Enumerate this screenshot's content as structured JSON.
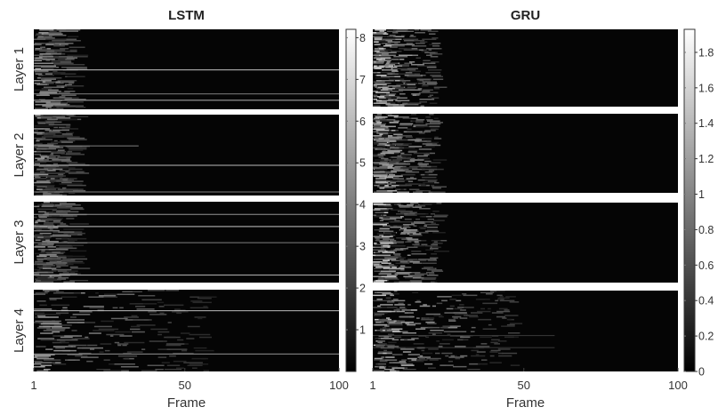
{
  "chart_data": [
    {
      "type": "heatmap",
      "title": "LSTM",
      "xlabel": "Frame",
      "x_ticks": [
        "1",
        "50",
        "100"
      ],
      "x_range": [
        1,
        100
      ],
      "layers": [
        "Layer 1",
        "Layer 2",
        "Layer 3",
        "Layer 4"
      ],
      "colorbar": {
        "colormap": "gray",
        "range": [
          0,
          8.2
        ],
        "ticks": [
          "1",
          "2",
          "3",
          "4",
          "5",
          "6",
          "7",
          "8"
        ],
        "tick_values": [
          1,
          2,
          3,
          4,
          5,
          6,
          7,
          8
        ]
      },
      "activity_profile": "strong activations in frames 1-10, some persistent horizontal bright lines across all frames, fading toward frame 100"
    },
    {
      "type": "heatmap",
      "title": "GRU",
      "xlabel": "Frame",
      "x_ticks": [
        "1",
        "50",
        "100"
      ],
      "x_range": [
        1,
        100
      ],
      "layers": [],
      "colorbar": {
        "colormap": "gray",
        "range": [
          0,
          1.93
        ],
        "ticks": [
          "0",
          "0.2",
          "0.4",
          "0.6",
          "0.8",
          "1",
          "1.2",
          "1.4",
          "1.6",
          "1.8"
        ],
        "tick_values": [
          0,
          0.2,
          0.4,
          0.6,
          0.8,
          1.0,
          1.2,
          1.4,
          1.6,
          1.8
        ]
      },
      "activity_profile": "bright speckled activations concentrated in frames 1-20, dark afterwards"
    }
  ]
}
